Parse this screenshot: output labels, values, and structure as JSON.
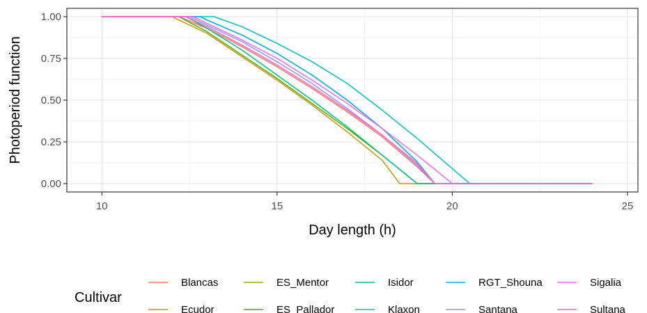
{
  "chart_data": {
    "type": "line",
    "xlabel": "Day length (h)",
    "ylabel": "Photoperiod function",
    "xlim": [
      9,
      25.3
    ],
    "ylim": [
      -0.05,
      1.05
    ],
    "xticks": [
      {
        "value": 10,
        "label": "10"
      },
      {
        "value": 15,
        "label": "15"
      },
      {
        "value": 20,
        "label": "20"
      },
      {
        "value": 25,
        "label": "25"
      }
    ],
    "yticks": [
      {
        "value": 0.0,
        "label": "0.00"
      },
      {
        "value": 0.25,
        "label": "0.25"
      },
      {
        "value": 0.5,
        "label": "0.50"
      },
      {
        "value": 0.75,
        "label": "0.75"
      },
      {
        "value": 1.0,
        "label": "1.00"
      }
    ],
    "grid": true,
    "legend": {
      "title": "Cultivar",
      "position": "bottom",
      "columns": 5
    },
    "series": [
      {
        "name": "Blancas",
        "color": "#F8766D",
        "x": [
          10,
          12.2,
          13,
          14,
          15,
          16,
          17,
          18,
          19,
          19.5,
          24
        ],
        "y": [
          1,
          1,
          0.93,
          0.82,
          0.7,
          0.57,
          0.43,
          0.28,
          0.1,
          0,
          0
        ]
      },
      {
        "name": "Ecudor",
        "color": "#D89000",
        "x": [
          10,
          12,
          13,
          14,
          15,
          16,
          17,
          18,
          18.5,
          24
        ],
        "y": [
          1,
          1,
          0.9,
          0.76,
          0.62,
          0.47,
          0.31,
          0.14,
          0,
          0
        ]
      },
      {
        "name": "ES_Mentor",
        "color": "#A3A500",
        "x": [
          10,
          12.8,
          13,
          14,
          15,
          16,
          17,
          18,
          19,
          19.5,
          24
        ],
        "y": [
          1,
          1,
          0.98,
          0.89,
          0.78,
          0.65,
          0.5,
          0.33,
          0.13,
          0,
          0
        ]
      },
      {
        "name": "ES_Pallador",
        "color": "#39B600",
        "x": [
          10,
          12.2,
          13,
          14,
          15,
          16,
          17,
          18,
          19,
          24
        ],
        "y": [
          1,
          1,
          0.91,
          0.77,
          0.63,
          0.48,
          0.33,
          0.17,
          0,
          0
        ]
      },
      {
        "name": "Isidor",
        "color": "#00BF7D",
        "x": [
          10,
          12.4,
          13,
          14,
          15,
          16,
          17,
          18,
          19,
          24
        ],
        "y": [
          1,
          1,
          0.93,
          0.8,
          0.65,
          0.5,
          0.34,
          0.17,
          0,
          0
        ]
      },
      {
        "name": "Klaxon",
        "color": "#00BFC4",
        "x": [
          10,
          13.2,
          14,
          15,
          16,
          17,
          18,
          19,
          20,
          20.5,
          24
        ],
        "y": [
          1,
          1,
          0.94,
          0.84,
          0.73,
          0.6,
          0.44,
          0.27,
          0.09,
          0,
          0
        ]
      },
      {
        "name": "RGT_Shouna",
        "color": "#00B0F6",
        "x": [
          10,
          12.8,
          13,
          14,
          15,
          16,
          17,
          18,
          19,
          19.5,
          24
        ],
        "y": [
          1,
          1,
          0.98,
          0.89,
          0.78,
          0.65,
          0.5,
          0.33,
          0.13,
          0,
          0
        ]
      },
      {
        "name": "Santana",
        "color": "#9590FF",
        "x": [
          10,
          12.5,
          13,
          14,
          15,
          16,
          17,
          18,
          19,
          19.5,
          24
        ],
        "y": [
          1,
          1,
          0.95,
          0.85,
          0.73,
          0.6,
          0.45,
          0.29,
          0.11,
          0,
          0
        ]
      },
      {
        "name": "Sigalia",
        "color": "#E76BF3",
        "x": [
          10,
          12.6,
          13,
          14,
          15,
          16,
          17,
          18,
          19,
          20,
          24
        ],
        "y": [
          1,
          1,
          0.96,
          0.86,
          0.75,
          0.62,
          0.48,
          0.33,
          0.17,
          0,
          0
        ]
      },
      {
        "name": "Sultana",
        "color": "#FF62BC",
        "x": [
          10,
          12.4,
          13,
          14,
          15,
          16,
          17,
          18,
          19,
          19.5,
          24
        ],
        "y": [
          1,
          1,
          0.94,
          0.83,
          0.71,
          0.58,
          0.44,
          0.29,
          0.12,
          0,
          0
        ]
      }
    ]
  }
}
